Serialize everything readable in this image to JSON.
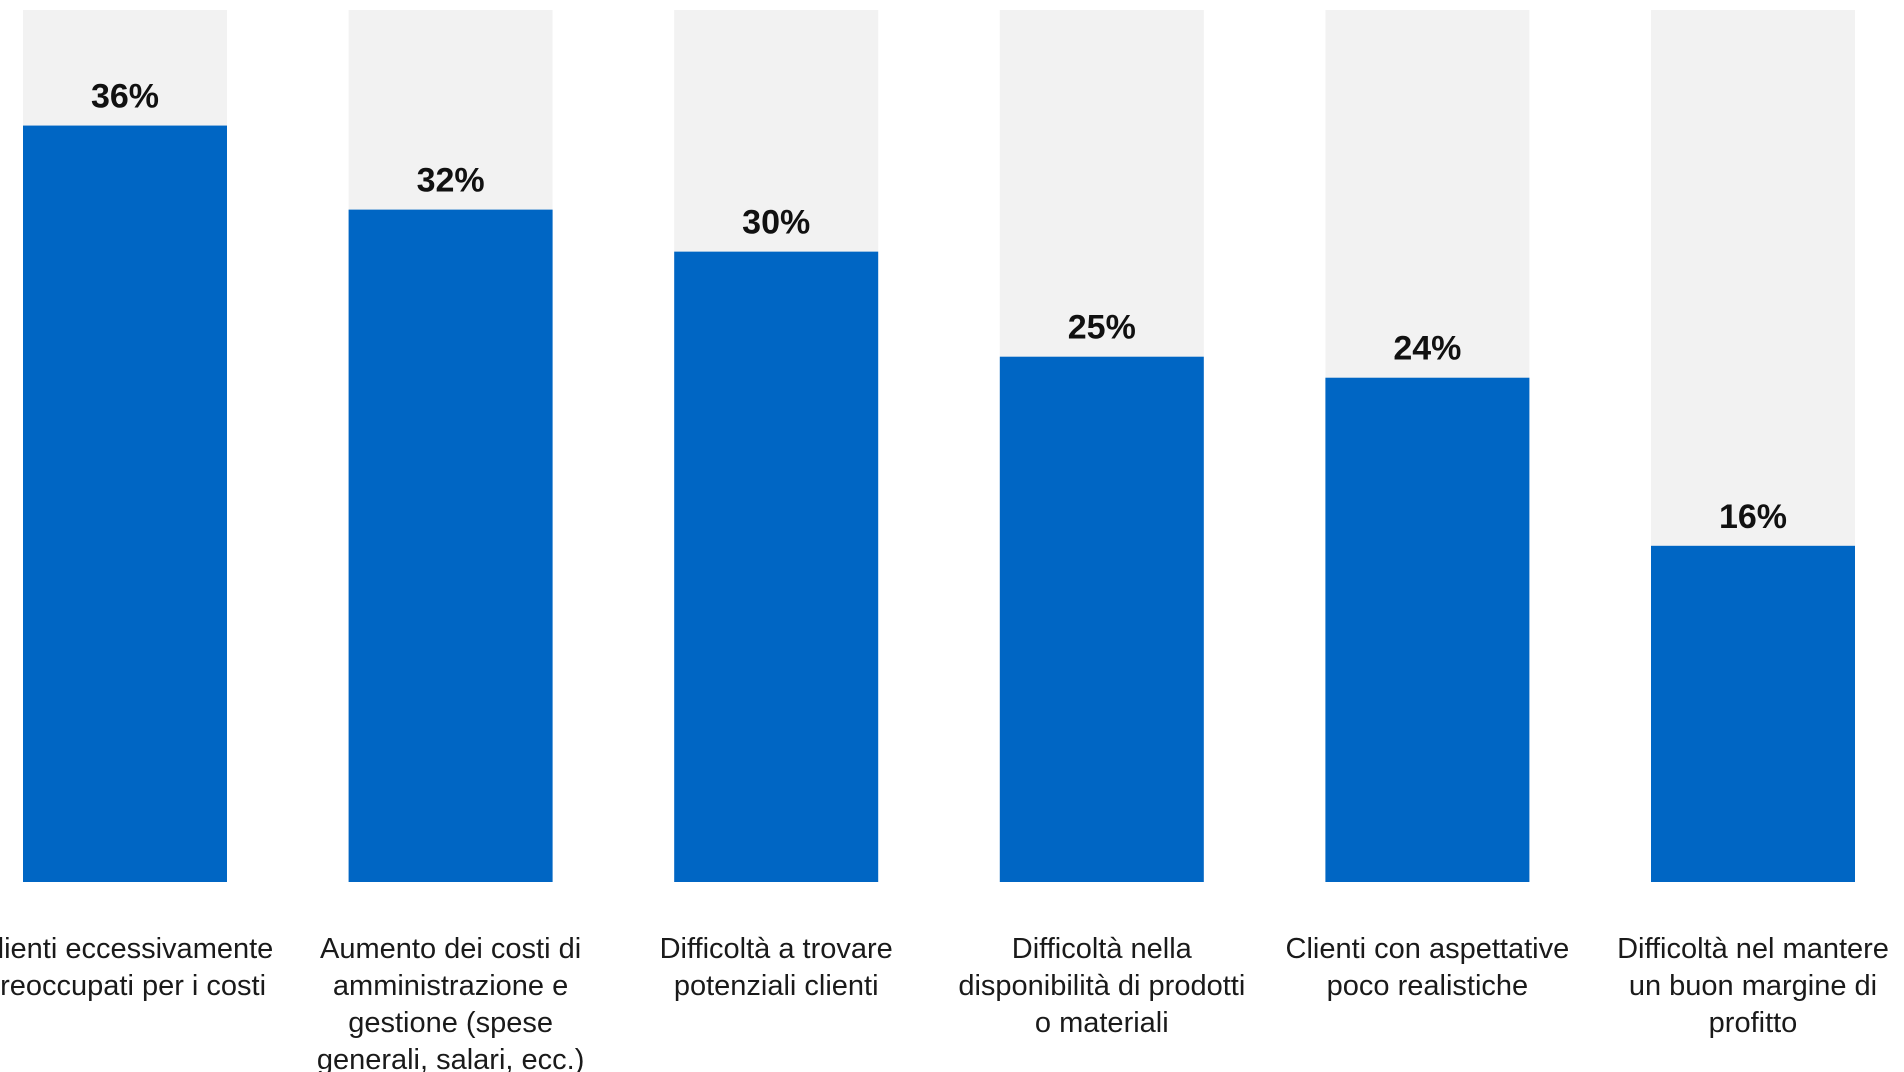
{
  "chart_data": {
    "type": "bar",
    "categories": [
      "Clienti eccessivamente preoccupati per i costi",
      "Aumento dei costi di amministrazione e gestione (spese generali, salari, ecc.)",
      "Difficoltà a trovare potenziali clienti",
      "Difficoltà nella disponibilità di prodotti o materiali",
      "Clienti con aspettative poco realistiche",
      "Difficoltà nel mantere un buon margine di profitto"
    ],
    "category_lines": [
      [
        "Clienti eccessivamente",
        "preoccupati per i costi"
      ],
      [
        "Aumento dei costi di",
        "amministrazione e",
        "gestione (spese",
        "generali, salari, ecc.)"
      ],
      [
        "Difficoltà a trovare",
        "potenziali clienti"
      ],
      [
        "Difficoltà nella",
        "disponibilità di prodotti",
        "o materiali"
      ],
      [
        "Clienti con aspettative",
        "poco realistiche"
      ],
      [
        "Difficoltà nel mantere",
        "un buon margine di",
        "profitto"
      ]
    ],
    "values": [
      36,
      32,
      30,
      25,
      24,
      16
    ],
    "value_labels": [
      "36%",
      "32%",
      "30%",
      "25%",
      "24%",
      "16%"
    ],
    "ylim": [
      0,
      41.5
    ],
    "bar_color": "#0066c4",
    "track_color": "#f2f2f2",
    "grid": false,
    "legend": "none"
  }
}
